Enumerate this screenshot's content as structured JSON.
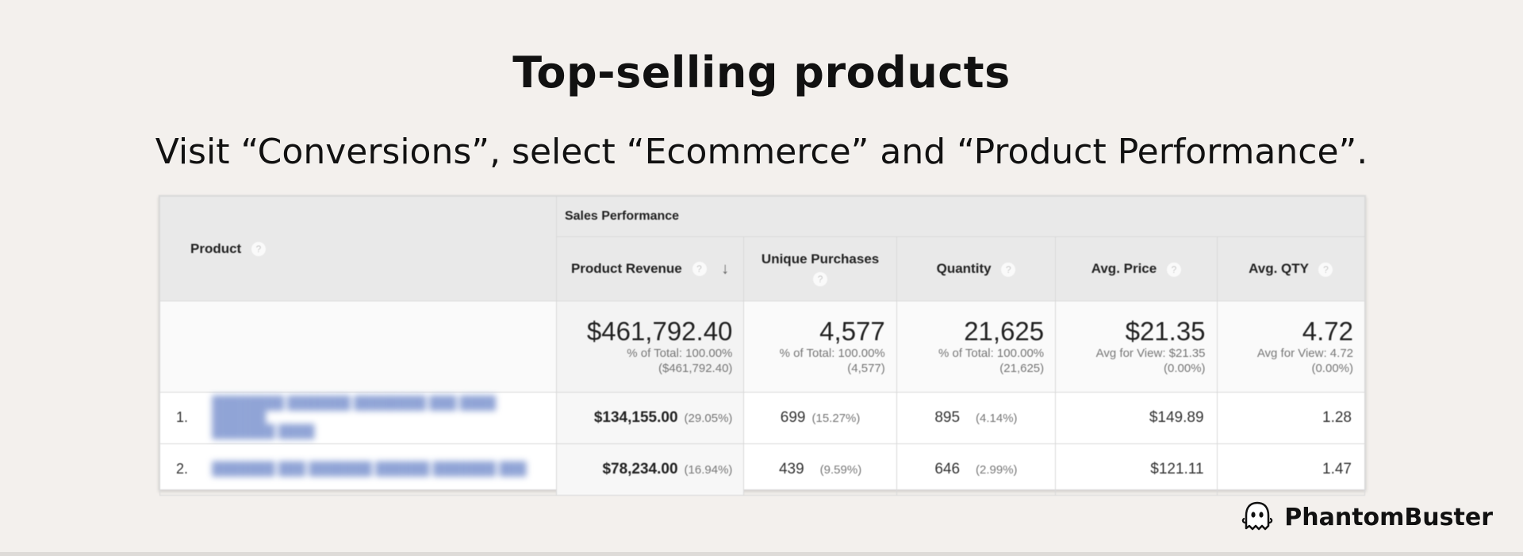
{
  "title": "Top-selling products",
  "subtitle": "Visit “Conversions”, select “Ecommerce” and “Product Performance”.",
  "table": {
    "group_header": "Sales Performance",
    "product_header": "Product",
    "help_glyph": "?",
    "sort_glyph": "↓",
    "columns": {
      "product_revenue": "Product Revenue",
      "unique_purchases": "Unique Purchases",
      "quantity": "Quantity",
      "avg_price": "Avg. Price",
      "avg_qty": "Avg. QTY"
    },
    "totals": {
      "product_revenue": {
        "value": "$461,792.40",
        "line1": "% of Total: 100.00%",
        "line2": "($461,792.40)"
      },
      "unique_purchases": {
        "value": "4,577",
        "line1": "% of Total: 100.00%",
        "line2": "(4,577)"
      },
      "quantity": {
        "value": "21,625",
        "line1": "% of Total: 100.00%",
        "line2": "(21,625)"
      },
      "avg_price": {
        "value": "$21.35",
        "line1": "Avg for View: $21.35",
        "line2": "(0.00%)"
      },
      "avg_qty": {
        "value": "4.72",
        "line1": "Avg for View: 4.72",
        "line2": "(0.00%)"
      }
    },
    "rows": [
      {
        "num": "1.",
        "product": "",
        "revenue": "$134,155.00",
        "revenue_pct": "(29.05%)",
        "unique": "699",
        "unique_pct": "(15.27%)",
        "quantity": "895",
        "quantity_pct": "(4.14%)",
        "avg_price": "$149.89",
        "avg_qty": "1.28"
      },
      {
        "num": "2.",
        "product": "",
        "revenue": "$78,234.00",
        "revenue_pct": "(16.94%)",
        "unique": "439",
        "unique_pct": "(9.59%)",
        "quantity": "646",
        "quantity_pct": "(2.99%)",
        "avg_price": "$121.11",
        "avg_qty": "1.47"
      }
    ]
  },
  "brand": {
    "name": "PhantomBuster",
    "icon": "ghost-icon"
  }
}
